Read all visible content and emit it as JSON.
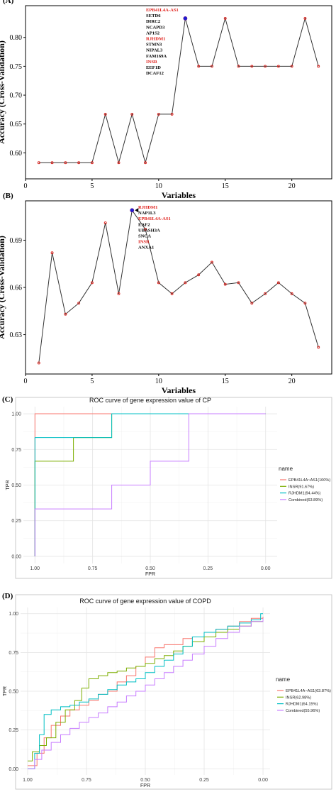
{
  "chart_data": [
    {
      "panel_label": "(A)",
      "type": "line",
      "xlabel": "Variables",
      "ylabel": "Accuracy (Cross-Validation)",
      "xlim": [
        0,
        23
      ],
      "ylim": [
        0.555,
        0.855
      ],
      "xticks": [
        0,
        5,
        10,
        15,
        20
      ],
      "yticks": [
        0.6,
        0.65,
        0.7,
        0.75,
        0.8
      ],
      "ytick_labels": [
        "0.60",
        "0.65",
        "0.70",
        "0.75",
        "0.80"
      ],
      "x": [
        1,
        2,
        3,
        4,
        5,
        6,
        7,
        8,
        9,
        10,
        11,
        12,
        13,
        14,
        15,
        16,
        17,
        18,
        19,
        20,
        21,
        22
      ],
      "y": [
        0.583,
        0.583,
        0.583,
        0.583,
        0.583,
        0.667,
        0.583,
        0.667,
        0.583,
        0.667,
        0.667,
        0.833,
        0.75,
        0.75,
        0.833,
        0.75,
        0.75,
        0.75,
        0.75,
        0.75,
        0.833,
        0.75
      ],
      "highlight_index": 11,
      "annotation": [
        {
          "text": "EPB41L4A-AS1",
          "color": "#e0201b"
        },
        {
          "text": "SETD6",
          "color": "#000000"
        },
        {
          "text": "DIRC2",
          "color": "#000000"
        },
        {
          "text": "NCAPD3",
          "color": "#000000"
        },
        {
          "text": "AP1S2",
          "color": "#000000"
        },
        {
          "text": "RJHDM1",
          "color": "#e0201b"
        },
        {
          "text": "STMN3",
          "color": "#000000"
        },
        {
          "text": "NIPAL3",
          "color": "#000000"
        },
        {
          "text": "FAM169A",
          "color": "#000000"
        },
        {
          "text": "INSR",
          "color": "#e0201b"
        },
        {
          "text": "EEF1D",
          "color": "#000000"
        },
        {
          "text": "DCAF12",
          "color": "#000000"
        }
      ]
    },
    {
      "panel_label": "(B)",
      "type": "line",
      "xlabel": "Variables",
      "ylabel": "Accuracy (Cross-Validation)",
      "xlim": [
        0,
        23
      ],
      "ylim": [
        0.605,
        0.715
      ],
      "xticks": [
        0,
        5,
        10,
        15,
        20
      ],
      "yticks": [
        0.63,
        0.66,
        0.69
      ],
      "ytick_labels": [
        "0.63",
        "0.66",
        "0.69"
      ],
      "x": [
        1,
        2,
        3,
        4,
        5,
        6,
        7,
        8,
        9,
        10,
        11,
        12,
        13,
        14,
        15,
        16,
        17,
        18,
        19,
        20,
        21,
        22
      ],
      "y": [
        0.612,
        0.682,
        0.643,
        0.65,
        0.663,
        0.701,
        0.656,
        0.709,
        0.697,
        0.663,
        0.656,
        0.663,
        0.668,
        0.676,
        0.662,
        0.663,
        0.65,
        0.656,
        0.663,
        0.656,
        0.65,
        0.622
      ],
      "highlight_index": 7,
      "annotation": [
        {
          "text": "RJHDM1",
          "color": "#e0201b"
        },
        {
          "text": "NAP1L3",
          "color": "#000000"
        },
        {
          "text": "EPB41L4A-AS1",
          "color": "#e0201b"
        },
        {
          "text": "EAF2",
          "color": "#000000"
        },
        {
          "text": "UBASH3A",
          "color": "#000000"
        },
        {
          "text": "SNCA",
          "color": "#000000"
        },
        {
          "text": "INSR",
          "color": "#e0201b"
        },
        {
          "text": "ANXA1",
          "color": "#000000"
        }
      ]
    },
    {
      "panel_label": "(C)",
      "type": "line",
      "title": "ROC curve of gene expression value of CP",
      "xlabel": "FPR",
      "ylabel": "TPR",
      "xlim": [
        1.05,
        -0.05
      ],
      "ylim": [
        -0.05,
        1.05
      ],
      "xticks": [
        1.0,
        0.75,
        0.5,
        0.25,
        0.0
      ],
      "xtick_labels": [
        "1.00",
        "0.75",
        "0.50",
        "0.25",
        "0.00"
      ],
      "yticks": [
        0.0,
        0.25,
        0.5,
        0.75,
        1.0
      ],
      "ytick_labels": [
        "0.00",
        "0.25",
        "0.50",
        "0.75",
        "1.00"
      ],
      "legend_title": "name",
      "legend_position": "right",
      "series": [
        {
          "name": "EPB41L4A~AS1(100%)",
          "color": "#f8766d",
          "x": [
            1.0,
            1.0,
            0.0
          ],
          "y": [
            0.0,
            1.0,
            1.0
          ]
        },
        {
          "name": "INSR(91.67%)",
          "color": "#7cae00",
          "x": [
            1.0,
            1.0,
            0.833,
            0.833,
            0.667,
            0.667,
            0.0
          ],
          "y": [
            0.0,
            0.667,
            0.667,
            0.833,
            0.833,
            1.0,
            1.0
          ]
        },
        {
          "name": "RJHDM1(94.44%)",
          "color": "#00bfc4",
          "x": [
            1.0,
            1.0,
            0.667,
            0.667,
            0.0
          ],
          "y": [
            0.0,
            0.833,
            0.833,
            1.0,
            1.0
          ]
        },
        {
          "name": "Combined(63.89%)",
          "color": "#c77cff",
          "x": [
            1.0,
            1.0,
            0.667,
            0.667,
            0.5,
            0.5,
            0.333,
            0.333,
            0.0
          ],
          "y": [
            0.0,
            0.333,
            0.333,
            0.5,
            0.5,
            0.667,
            0.667,
            1.0,
            1.0
          ]
        }
      ]
    },
    {
      "panel_label": "(D)",
      "type": "line",
      "title": "ROC curve of gene expression value of COPD",
      "xlabel": "FPR",
      "ylabel": "TPR",
      "xlim": [
        1.03,
        -0.03
      ],
      "ylim": [
        -0.04,
        1.04
      ],
      "xticks": [
        1.0,
        0.75,
        0.5,
        0.25,
        0.0
      ],
      "xtick_labels": [
        "1.00",
        "0.75",
        "0.50",
        "0.25",
        "0.00"
      ],
      "yticks": [
        0.0,
        0.25,
        0.5,
        0.75,
        1.0
      ],
      "ytick_labels": [
        "0.00",
        "0.25",
        "0.50",
        "0.75",
        "1.00"
      ],
      "legend_title": "name",
      "legend_position": "right",
      "series": [
        {
          "name": "EPB41L4A~AS1(63.87%)",
          "color": "#f8766d",
          "x": [
            1.0,
            0.96,
            0.93,
            0.9,
            0.86,
            0.82,
            0.78,
            0.74,
            0.7,
            0.66,
            0.62,
            0.58,
            0.54,
            0.5,
            0.46,
            0.42,
            0.38,
            0.34,
            0.3,
            0.25,
            0.2,
            0.15,
            0.1,
            0.05,
            0.0
          ],
          "y": [
            0.02,
            0.1,
            0.2,
            0.28,
            0.34,
            0.38,
            0.41,
            0.44,
            0.48,
            0.5,
            0.56,
            0.6,
            0.66,
            0.72,
            0.78,
            0.8,
            0.8,
            0.84,
            0.85,
            0.88,
            0.9,
            0.92,
            0.95,
            0.97,
            0.98
          ]
        },
        {
          "name": "INSR(62.98%)",
          "color": "#7cae00",
          "x": [
            1.0,
            0.98,
            0.95,
            0.92,
            0.88,
            0.84,
            0.8,
            0.77,
            0.74,
            0.7,
            0.66,
            0.62,
            0.58,
            0.54,
            0.5,
            0.46,
            0.42,
            0.38,
            0.34,
            0.3,
            0.25,
            0.2,
            0.15,
            0.1,
            0.05,
            0.0
          ],
          "y": [
            0.05,
            0.11,
            0.15,
            0.2,
            0.3,
            0.38,
            0.44,
            0.52,
            0.58,
            0.6,
            0.62,
            0.63,
            0.65,
            0.66,
            0.68,
            0.71,
            0.73,
            0.76,
            0.79,
            0.82,
            0.85,
            0.88,
            0.9,
            0.92,
            0.95,
            0.97
          ]
        },
        {
          "name": "RJHDM1(64.15%)",
          "color": "#00bfc4",
          "x": [
            1.0,
            0.97,
            0.95,
            0.93,
            0.9,
            0.86,
            0.82,
            0.78,
            0.74,
            0.7,
            0.66,
            0.62,
            0.58,
            0.54,
            0.5,
            0.46,
            0.42,
            0.38,
            0.34,
            0.3,
            0.25,
            0.2,
            0.15,
            0.1,
            0.05,
            0.01,
            0.0
          ],
          "y": [
            0.0,
            0.1,
            0.22,
            0.35,
            0.38,
            0.4,
            0.41,
            0.43,
            0.45,
            0.48,
            0.51,
            0.54,
            0.56,
            0.58,
            0.62,
            0.66,
            0.7,
            0.74,
            0.79,
            0.85,
            0.88,
            0.9,
            0.92,
            0.94,
            0.96,
            1.0,
            1.0
          ]
        },
        {
          "name": "Combined(55.96%)",
          "color": "#c77cff",
          "x": [
            1.0,
            0.97,
            0.94,
            0.9,
            0.86,
            0.82,
            0.78,
            0.74,
            0.7,
            0.66,
            0.62,
            0.58,
            0.54,
            0.5,
            0.46,
            0.42,
            0.38,
            0.34,
            0.3,
            0.25,
            0.2,
            0.15,
            0.1,
            0.05,
            0.0
          ],
          "y": [
            0.0,
            0.06,
            0.12,
            0.17,
            0.22,
            0.26,
            0.3,
            0.33,
            0.36,
            0.4,
            0.43,
            0.47,
            0.5,
            0.54,
            0.58,
            0.62,
            0.66,
            0.7,
            0.74,
            0.79,
            0.84,
            0.88,
            0.92,
            0.95,
            0.97
          ]
        }
      ]
    }
  ]
}
